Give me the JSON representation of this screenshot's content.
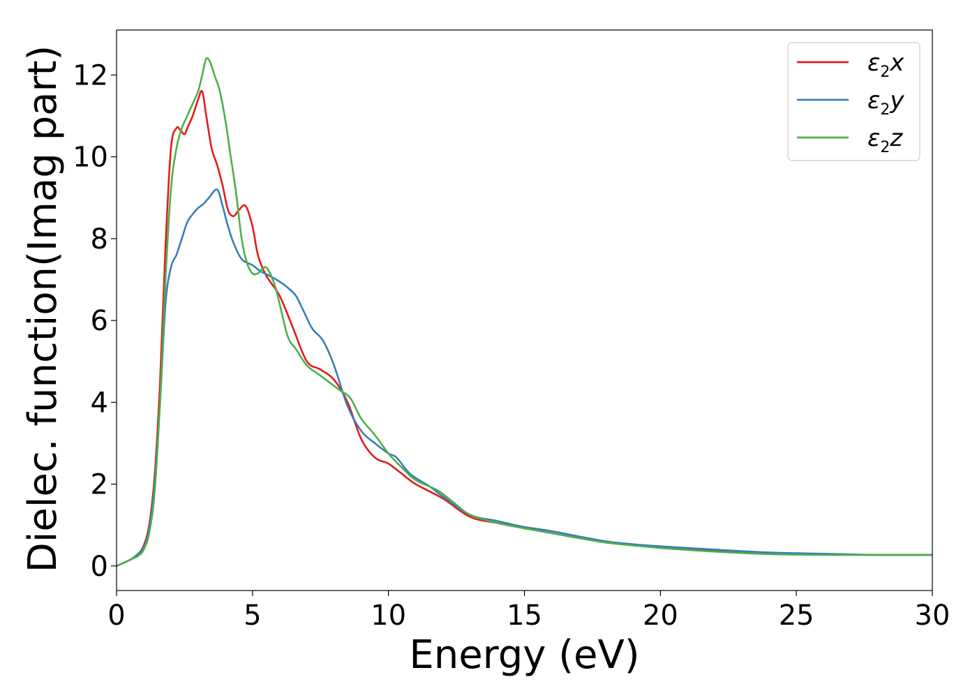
{
  "chart_data": {
    "type": "line",
    "title": "",
    "xlabel": "Energy (eV)",
    "ylabel": "Dielec. function(Imag part)",
    "xlim": [
      0,
      30
    ],
    "ylim": [
      -0.6,
      13.1
    ],
    "xticks": [
      0,
      5,
      10,
      15,
      20,
      25,
      30
    ],
    "yticks": [
      0,
      2,
      4,
      6,
      8,
      10,
      12
    ],
    "grid": false,
    "legend_position": "top-right",
    "series": [
      {
        "name": "ε2x",
        "label_main": "ε",
        "label_sub": "2",
        "label_axis": "x",
        "color": "#e41a1c",
        "x": [
          0,
          0.5,
          0.8,
          1.0,
          1.2,
          1.4,
          1.6,
          1.8,
          2.0,
          2.2,
          2.35,
          2.5,
          2.6,
          2.8,
          3.0,
          3.15,
          3.3,
          3.5,
          3.7,
          3.9,
          4.1,
          4.3,
          4.5,
          4.75,
          5.0,
          5.2,
          5.5,
          6.0,
          6.5,
          7.0,
          7.5,
          8.0,
          8.5,
          9.0,
          9.5,
          10.0,
          10.5,
          11.0,
          12.0,
          13.0,
          14.0,
          15.0,
          16.0,
          17.0,
          18.0,
          19.0,
          20.0,
          22.0,
          24.0,
          26.0,
          28.0,
          30.0
        ],
        "y": [
          0,
          0.15,
          0.3,
          0.5,
          1.0,
          2.2,
          4.5,
          7.8,
          10.2,
          10.7,
          10.65,
          10.55,
          10.7,
          11.0,
          11.4,
          11.6,
          11.0,
          10.2,
          9.8,
          9.3,
          8.7,
          8.55,
          8.7,
          8.8,
          8.3,
          7.6,
          7.1,
          6.6,
          5.8,
          5.0,
          4.8,
          4.55,
          4.0,
          3.1,
          2.65,
          2.5,
          2.25,
          2.0,
          1.65,
          1.2,
          1.05,
          0.95,
          0.85,
          0.72,
          0.6,
          0.52,
          0.45,
          0.37,
          0.31,
          0.28,
          0.27,
          0.27
        ]
      },
      {
        "name": "ε2y",
        "label_main": "ε",
        "label_sub": "2",
        "label_axis": "y",
        "color": "#377eb8",
        "x": [
          0,
          0.5,
          0.8,
          1.0,
          1.2,
          1.4,
          1.6,
          1.8,
          2.0,
          2.2,
          2.4,
          2.6,
          2.8,
          3.0,
          3.2,
          3.4,
          3.7,
          3.9,
          4.1,
          4.3,
          4.6,
          5.0,
          5.3,
          5.6,
          6.0,
          6.3,
          6.6,
          6.9,
          7.2,
          7.6,
          8.0,
          8.5,
          9.0,
          9.5,
          10.0,
          10.3,
          10.8,
          11.5,
          12.0,
          13.0,
          14.0,
          15.0,
          16.0,
          17.0,
          18.0,
          19.0,
          20.0,
          22.0,
          24.0,
          26.0,
          28.0,
          30.0
        ],
        "y": [
          0,
          0.15,
          0.3,
          0.45,
          0.9,
          2.0,
          4.0,
          6.4,
          7.3,
          7.6,
          8.0,
          8.4,
          8.6,
          8.75,
          8.85,
          9.0,
          9.2,
          8.8,
          8.3,
          7.9,
          7.5,
          7.35,
          7.2,
          7.1,
          6.95,
          6.8,
          6.6,
          6.2,
          5.8,
          5.5,
          4.9,
          3.9,
          3.3,
          3.0,
          2.75,
          2.65,
          2.25,
          1.95,
          1.7,
          1.25,
          1.1,
          0.95,
          0.85,
          0.72,
          0.6,
          0.53,
          0.48,
          0.4,
          0.33,
          0.3,
          0.27,
          0.27
        ]
      },
      {
        "name": "ε2z",
        "label_main": "ε",
        "label_sub": "2",
        "label_axis": "z",
        "color": "#4daf4a",
        "x": [
          0,
          0.5,
          0.8,
          1.0,
          1.2,
          1.4,
          1.6,
          1.8,
          2.0,
          2.2,
          2.4,
          2.6,
          2.8,
          3.0,
          3.15,
          3.3,
          3.45,
          3.6,
          3.8,
          4.0,
          4.2,
          4.4,
          4.6,
          4.8,
          5.0,
          5.2,
          5.5,
          5.8,
          6.0,
          6.3,
          6.6,
          7.0,
          7.4,
          7.8,
          8.2,
          8.6,
          9.0,
          9.5,
          10.0,
          10.5,
          11.0,
          11.8,
          12.4,
          13.0,
          14.0,
          15.0,
          16.0,
          17.0,
          18.0,
          19.0,
          20.0,
          22.0,
          24.0,
          26.0,
          28.0,
          30.0
        ],
        "y": [
          0,
          0.15,
          0.25,
          0.4,
          0.8,
          1.8,
          4.0,
          7.0,
          9.2,
          10.2,
          10.7,
          11.0,
          11.3,
          11.6,
          12.0,
          12.4,
          12.3,
          12.0,
          11.6,
          10.9,
          10.0,
          9.1,
          8.0,
          7.4,
          7.15,
          7.15,
          7.3,
          6.9,
          6.4,
          5.6,
          5.3,
          4.9,
          4.7,
          4.5,
          4.3,
          4.1,
          3.6,
          3.2,
          2.75,
          2.4,
          2.1,
          1.85,
          1.55,
          1.25,
          1.05,
          0.92,
          0.8,
          0.68,
          0.57,
          0.5,
          0.44,
          0.35,
          0.29,
          0.27,
          0.27,
          0.27
        ]
      }
    ]
  }
}
